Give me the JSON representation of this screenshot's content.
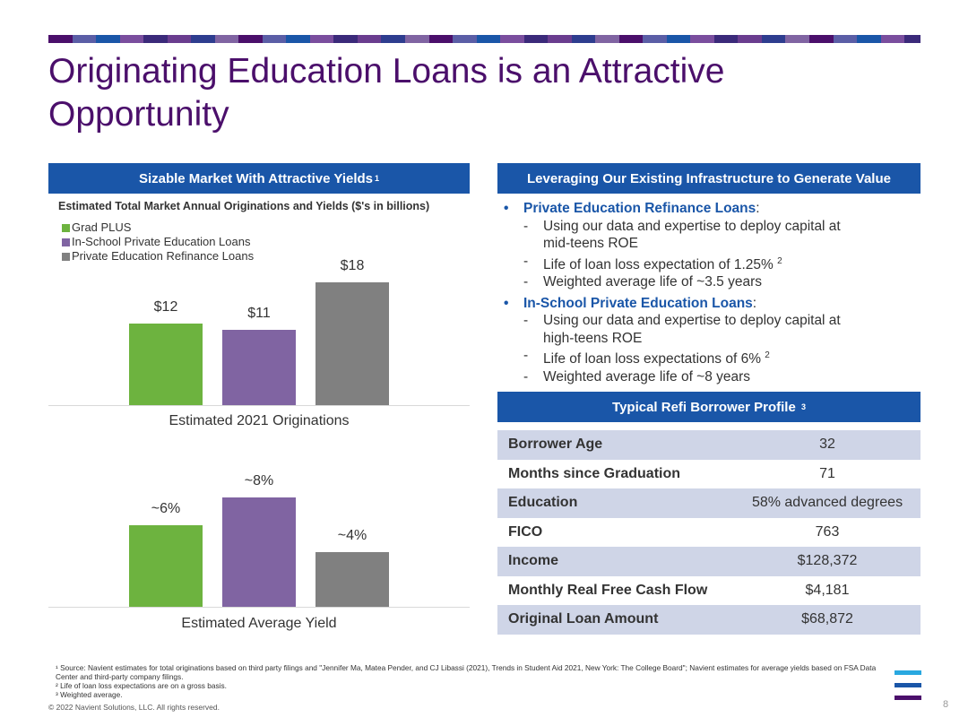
{
  "title": "Originating Education Loans is an Attractive Opportunity",
  "colors": {
    "brand_purple": "#4b0f6b",
    "header_blue": "#1a56a8",
    "grad_plus": "#6db33f",
    "in_school": "#8064a2",
    "refi": "#808080",
    "table_shade": "#cfd5e7"
  },
  "left_panel": {
    "header": "Sizable Market With Attractive Yields",
    "header_sup": "1",
    "subtitle": "Estimated Total Market Annual Originations and Yields ($'s in billions)",
    "legend": [
      "Grad PLUS",
      "In-School Private Education Loans",
      "Private Education Refinance Loans"
    ]
  },
  "chart_data": [
    {
      "type": "bar",
      "categories": [
        "Grad PLUS",
        "In-School Private Education Loans",
        "Private Education Refinance Loans"
      ],
      "values": [
        12,
        11,
        18
      ],
      "labels": [
        "$12",
        "$11",
        "$18"
      ],
      "xlabel": "Estimated 2021 Originations",
      "ylim": [
        0,
        20
      ]
    },
    {
      "type": "bar",
      "categories": [
        "Grad PLUS",
        "In-School Private Education Loans",
        "Private Education Refinance Loans"
      ],
      "values": [
        6,
        8,
        4
      ],
      "labels": [
        "~6%",
        "~8%",
        "~4%"
      ],
      "xlabel": "Estimated Average Yield",
      "ylim": [
        0,
        9
      ]
    }
  ],
  "right_panel": {
    "header": "Leveraging Our Existing Infrastructure to Generate Value",
    "bullets": [
      {
        "head": "Private Education Refinance Loans",
        "colon": ":",
        "items": [
          {
            "text": "Using our data and expertise to deploy capital at mid-teens ROE",
            "sup": ""
          },
          {
            "text": "Life of loan loss expectation of 1.25%",
            "sup": "2"
          },
          {
            "text": "Weighted average life of ~3.5 years",
            "sup": ""
          }
        ]
      },
      {
        "head": "In-School Private Education Loans",
        "colon": ":",
        "items": [
          {
            "text": "Using our data and expertise to deploy capital at high-teens ROE",
            "sup": ""
          },
          {
            "text": "Life of loan loss expectations of 6%",
            "sup": "2"
          },
          {
            "text": "Weighted average life of ~8 years",
            "sup": ""
          }
        ]
      }
    ],
    "profile_header": "Typical Refi Borrower Profile",
    "profile_header_sup": "3",
    "profile": [
      {
        "k": "Borrower Age",
        "v": "32"
      },
      {
        "k": "Months since Graduation",
        "v": "71"
      },
      {
        "k": "Education",
        "v": "58% advanced degrees"
      },
      {
        "k": "FICO",
        "v": "763"
      },
      {
        "k": "Income",
        "v": "$128,372"
      },
      {
        "k": "Monthly Real Free Cash Flow",
        "v": "$4,181"
      },
      {
        "k": "Original Loan Amount",
        "v": "$68,872"
      }
    ]
  },
  "footnotes": [
    "¹ Source: Navient estimates for total originations based on third party filings and \"Jennifer Ma, Matea Pender, and CJ Libassi (2021), Trends in Student Aid 2021, New York: The College Board\"; Navient estimates for average yields based on FSA Data Center and third-party company filings.",
    "² Life of loan loss expectations are on a gross basis.",
    "³ Weighted average."
  ],
  "copyright": "© 2022 Navient Solutions, LLC. All rights reserved.",
  "page_number": "8"
}
